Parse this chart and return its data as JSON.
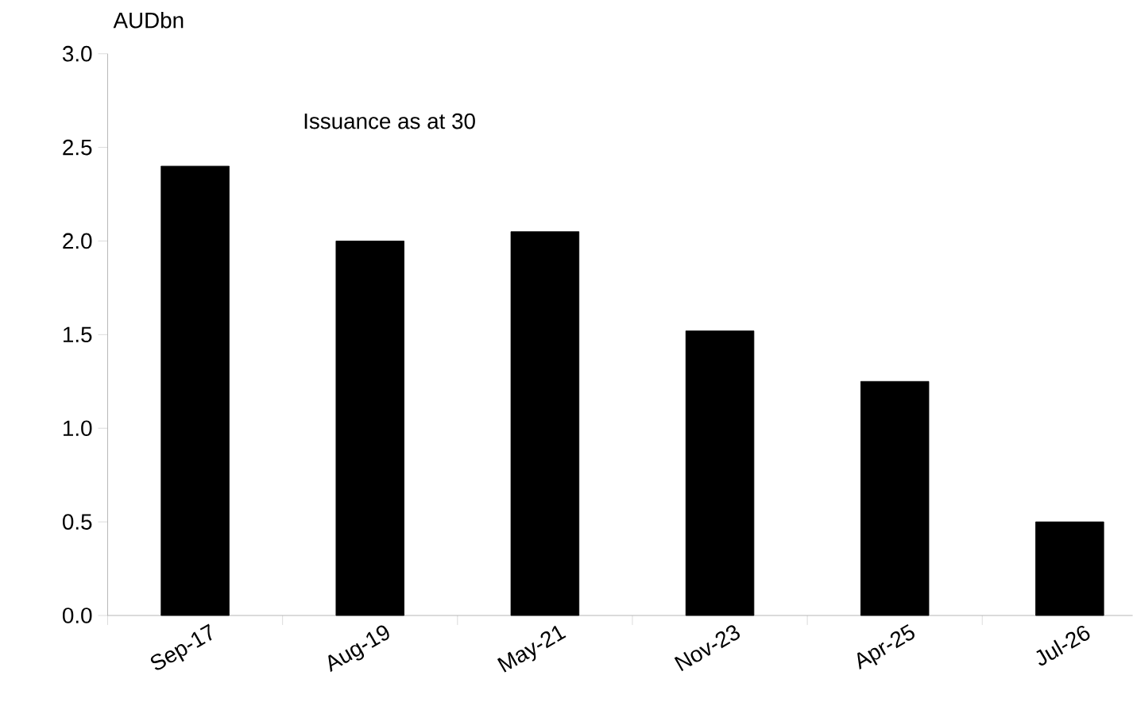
{
  "chart_data": {
    "type": "bar",
    "ylabel": "AUDbn",
    "annotations": [
      "Issuance as at 30"
    ],
    "categories": [
      "Sep-17",
      "Aug-19",
      "May-21",
      "Nov-23",
      "Apr-25",
      "Jul-26"
    ],
    "values": [
      2.4,
      2.0,
      2.05,
      1.52,
      1.25,
      0.5
    ],
    "color": "#000000",
    "ylim": [
      0,
      3
    ],
    "yticks": [
      {
        "value": 0,
        "label": "0.0"
      },
      {
        "value": 0.5,
        "label": "0.5"
      },
      {
        "value": 1,
        "label": "1.0"
      },
      {
        "value": 1.5,
        "label": "1.5"
      },
      {
        "value": 2,
        "label": "2.0"
      },
      {
        "value": 2.5,
        "label": "2.5"
      },
      {
        "value": 3,
        "label": "3.0"
      }
    ],
    "grid": false
  }
}
